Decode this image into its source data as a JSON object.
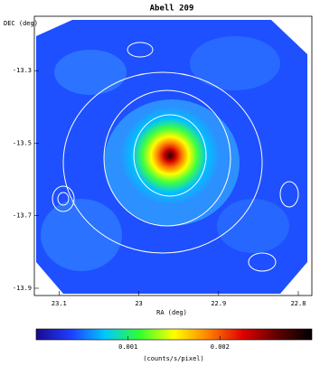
{
  "chart_data": {
    "type": "image",
    "title": "Abell 209",
    "xlabel": "RA (deg)",
    "ylabel": "DEC (deg)",
    "xlim": [
      23.131,
      22.783
    ],
    "xticks": [
      23.1,
      23,
      22.9,
      22.8
    ],
    "ylim": [
      -13.92,
      -13.15
    ],
    "yticks": [
      -13.3,
      -13.5,
      -13.7,
      -13.9
    ],
    "colorbar": {
      "label": "(counts/s/pixel)",
      "lim": [
        0,
        0.003
      ],
      "ticks": [
        0.001,
        0.002
      ],
      "colors": [
        "#1a0a8c",
        "#1e3cff",
        "#00c8ff",
        "#30ff30",
        "#ffff00",
        "#ff8000",
        "#e00000",
        "#600000",
        "#000000"
      ]
    }
  }
}
